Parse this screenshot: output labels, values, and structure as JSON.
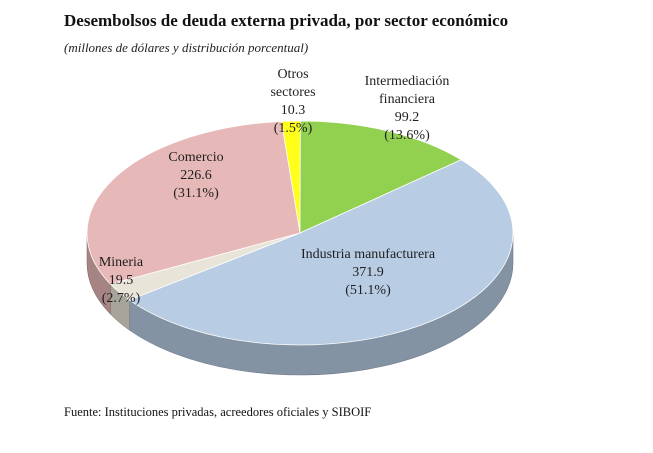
{
  "chart_data": {
    "type": "pie",
    "title": "Desembolsos de deuda externa privada, por sector económico",
    "subtitle": "(millones de dólares y distribución porcentual)",
    "source": "Fuente: Instituciones privadas, acreedores oficiales y SIBOIF",
    "slices": [
      {
        "label_lines": [
          "Otros",
          "sectores"
        ],
        "value": 10.3,
        "value_text": "10.3",
        "percent_text": "(1.5%)",
        "color": "#ffff1a"
      },
      {
        "label_lines": [
          "Intermediación",
          "financiera"
        ],
        "value": 99.2,
        "value_text": "99.2",
        "percent_text": "(13.6%)",
        "color": "#92d050"
      },
      {
        "label_lines": [
          "Industria manufacturera"
        ],
        "value": 371.9,
        "value_text": "371.9",
        "percent_text": "(51.1%)",
        "color": "#b8cce4"
      },
      {
        "label_lines": [
          "Mineria"
        ],
        "value": 19.5,
        "value_text": "19.5",
        "percent_text": "(2.7%)",
        "color": "#e8e4d8"
      },
      {
        "label_lines": [
          "Comercio"
        ],
        "value": 226.6,
        "value_text": "226.6",
        "percent_text": "(31.1%)",
        "color": "#e6b8b7"
      }
    ]
  }
}
